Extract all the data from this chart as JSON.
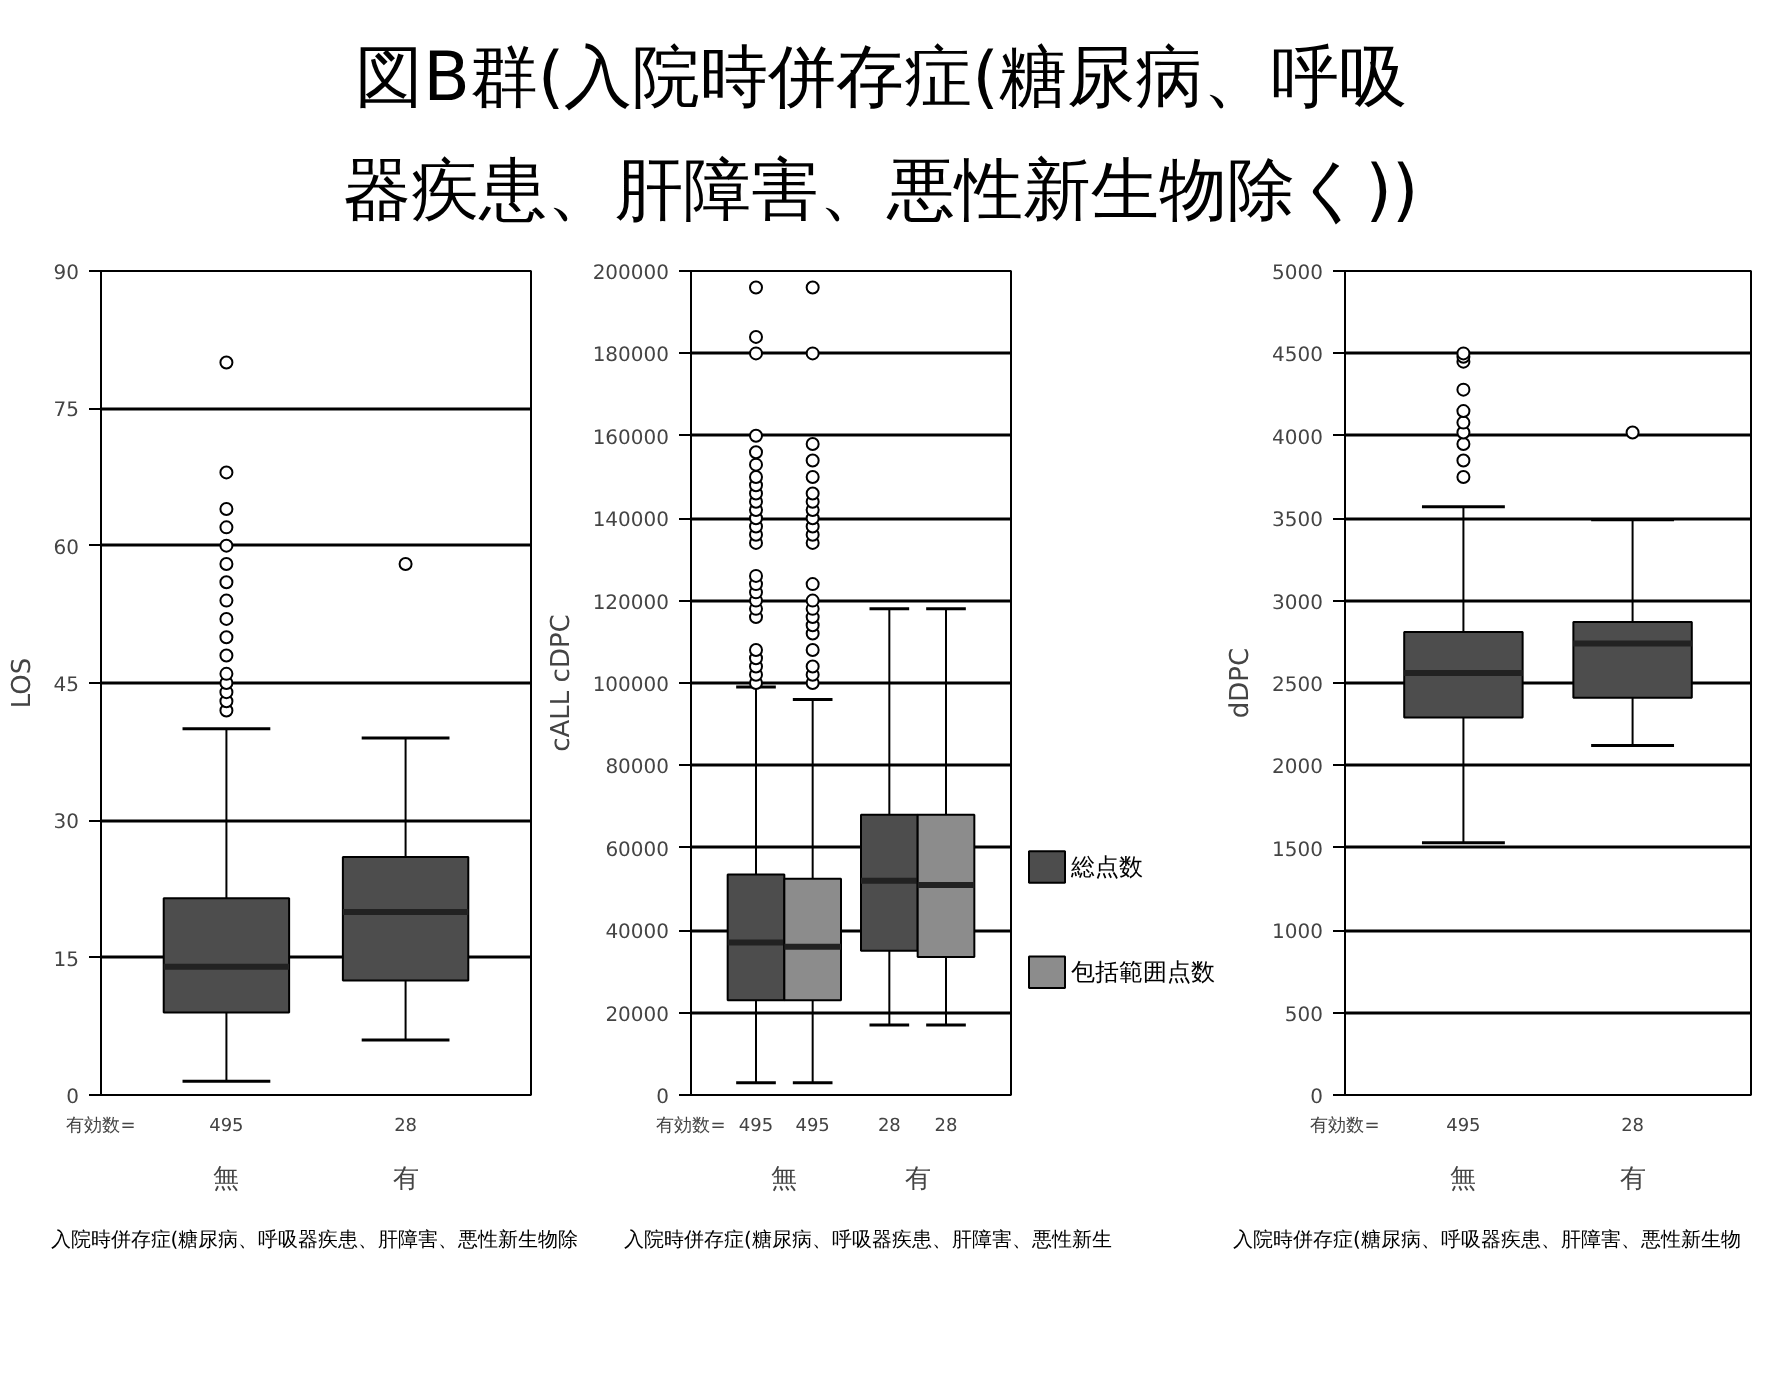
{
  "chart_data": [
    {
      "type": "box",
      "title": "図B群(入院時併存症(糖尿病、呼吸器疾患、肝障害、悪性新生物除く))",
      "ylabel": "LOS",
      "xlabel": "入院時併存症(糖尿病、呼吸器疾患、肝障害、悪性新生物除",
      "categories": [
        "無",
        "有"
      ],
      "ylim": [
        0,
        90
      ],
      "yticks": [
        0,
        15,
        30,
        45,
        60,
        75,
        90
      ],
      "grid": "y",
      "annotations": [
        "有効数=",
        "495",
        "28"
      ],
      "series": [
        {
          "color": "#4d4d4d",
          "boxes": [
            {
              "low": 1.5,
              "q1": 9,
              "median": 14,
              "q3": 21.5,
              "high": 40,
              "outliers": [
                42,
                43,
                44,
                45,
                46,
                48,
                50,
                52,
                54,
                56,
                58,
                60,
                62,
                64,
                68,
                80
              ]
            },
            {
              "low": 6,
              "q1": 12.5,
              "median": 20,
              "q3": 26,
              "high": 39,
              "outliers": [
                58
              ]
            }
          ]
        }
      ]
    },
    {
      "type": "box",
      "ylabel": "cALL cDPC",
      "xlabel": "入院時併存症(糖尿病、呼吸器疾患、肝障害、悪性新生",
      "categories": [
        "無",
        "有"
      ],
      "ylim": [
        0,
        200000
      ],
      "yticks": [
        0,
        20000,
        40000,
        60000,
        80000,
        100000,
        120000,
        140000,
        160000,
        180000,
        200000
      ],
      "grid": "y",
      "legend": "right",
      "annotations": [
        "有効数=",
        "495",
        "495",
        "28",
        "28"
      ],
      "series": [
        {
          "name": "総点数",
          "color": "#4d4d4d",
          "boxes": [
            {
              "low": 3000,
              "q1": 23000,
              "median": 37000,
              "q3": 53500,
              "high": 99000,
              "outliers": [
                100000,
                102000,
                104000,
                106000,
                108000,
                116000,
                118000,
                120000,
                122000,
                124000,
                126000,
                134000,
                136000,
                138000,
                140000,
                142000,
                144000,
                146000,
                148000,
                150000,
                153000,
                156000,
                160000,
                180000,
                184000,
                196000
              ]
            },
            {
              "low": 17000,
              "q1": 35000,
              "median": 52000,
              "q3": 68000,
              "high": 118000
            }
          ]
        },
        {
          "name": "包括範囲点数",
          "color": "#8c8c8c",
          "boxes": [
            {
              "low": 3000,
              "q1": 23000,
              "median": 36000,
              "q3": 52500,
              "high": 96000,
              "outliers": [
                100000,
                102000,
                104000,
                108000,
                112000,
                114000,
                116000,
                118000,
                120000,
                124000,
                134000,
                136000,
                138000,
                140000,
                142000,
                144000,
                146000,
                150000,
                154000,
                158000,
                180000,
                196000
              ]
            },
            {
              "low": 17000,
              "q1": 33500,
              "median": 51000,
              "q3": 68000,
              "high": 118000
            }
          ]
        }
      ]
    },
    {
      "type": "box",
      "ylabel": "dDPC",
      "xlabel": "入院時併存症(糖尿病、呼吸器疾患、肝障害、悪性新生物",
      "categories": [
        "無",
        "有"
      ],
      "ylim": [
        0,
        5000
      ],
      "yticks": [
        0,
        500,
        1000,
        1500,
        2000,
        2500,
        3000,
        3500,
        4000,
        4500,
        5000
      ],
      "grid": "y",
      "annotations": [
        "有効数=",
        "495",
        "28"
      ],
      "series": [
        {
          "color": "#4d4d4d",
          "boxes": [
            {
              "low": 1530,
              "q1": 2290,
              "median": 2560,
              "q3": 2810,
              "high": 3570,
              "outliers": [
                3750,
                3850,
                3950,
                4020,
                4080,
                4150,
                4280,
                4450,
                4480,
                4500
              ]
            },
            {
              "low": 2120,
              "q1": 2410,
              "median": 2740,
              "q3": 2870,
              "high": 3490,
              "outliers": [
                4020
              ]
            }
          ]
        }
      ]
    }
  ]
}
